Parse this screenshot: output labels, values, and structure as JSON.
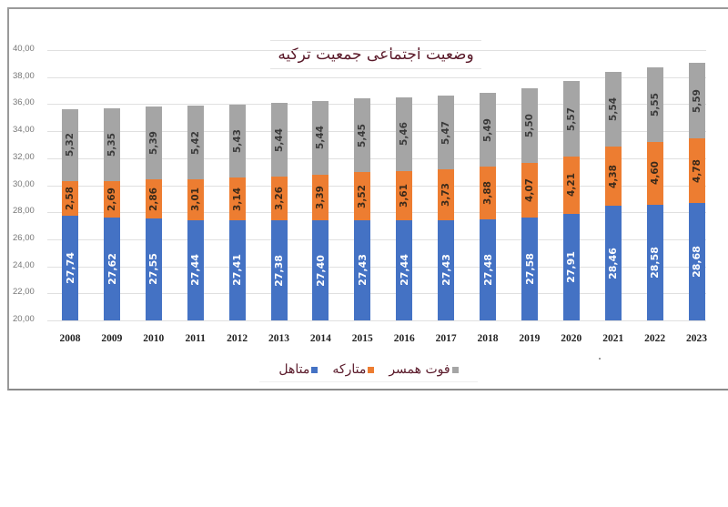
{
  "chart_data": {
    "type": "bar",
    "stacked": true,
    "title": "وضعیت اجتماعی جمعیت ترکیه",
    "xlabel": "",
    "ylabel": "",
    "ylim": [
      20,
      40
    ],
    "yticks": [
      "20,00",
      "22,00",
      "24,00",
      "26,00",
      "28,00",
      "30,00",
      "32,00",
      "34,00",
      "36,00",
      "38,00",
      "40,00"
    ],
    "grid": true,
    "legend_position": "bottom",
    "categories": [
      "2008",
      "2009",
      "2010",
      "2011",
      "2012",
      "2013",
      "2014",
      "2015",
      "2016",
      "2017",
      "2018",
      "2019",
      "2020",
      "2021",
      "2022",
      "2023"
    ],
    "series": [
      {
        "name": "متاهل",
        "color": "#4472c4",
        "values": [
          27.74,
          27.62,
          27.55,
          27.44,
          27.41,
          27.38,
          27.4,
          27.43,
          27.44,
          27.43,
          27.48,
          27.58,
          27.91,
          28.46,
          28.58,
          28.68
        ],
        "labels": [
          "27,74",
          "27,62",
          "27,55",
          "27,44",
          "27,41",
          "27,38",
          "27,40",
          "27,43",
          "27,44",
          "27,43",
          "27,48",
          "27,58",
          "27,91",
          "28,46",
          "28,58",
          "28,68"
        ]
      },
      {
        "name": "متارکه",
        "color": "#ed7d31",
        "values": [
          2.58,
          2.69,
          2.86,
          3.01,
          3.14,
          3.26,
          3.39,
          3.52,
          3.61,
          3.73,
          3.88,
          4.07,
          4.21,
          4.38,
          4.6,
          4.78
        ],
        "labels": [
          "2,58",
          "2,69",
          "2,86",
          "3,01",
          "3,14",
          "3,26",
          "3,39",
          "3,52",
          "3,61",
          "3,73",
          "3,88",
          "4,07",
          "4,21",
          "4,38",
          "4,60",
          "4,78"
        ]
      },
      {
        "name": "فوت همسر",
        "color": "#a5a5a5",
        "values": [
          5.32,
          5.35,
          5.39,
          5.42,
          5.43,
          5.44,
          5.44,
          5.45,
          5.46,
          5.47,
          5.49,
          5.5,
          5.57,
          5.54,
          5.55,
          5.59
        ],
        "labels": [
          "5,32",
          "5,35",
          "5,39",
          "5,42",
          "5,43",
          "5,44",
          "5,44",
          "5,45",
          "5,46",
          "5,47",
          "5,49",
          "5,50",
          "5,57",
          "5,54",
          "5,55",
          "5,59"
        ]
      }
    ]
  },
  "legend": {
    "married": "متاهل",
    "divorced": "متارکه",
    "widowed": "فوت همسر"
  }
}
